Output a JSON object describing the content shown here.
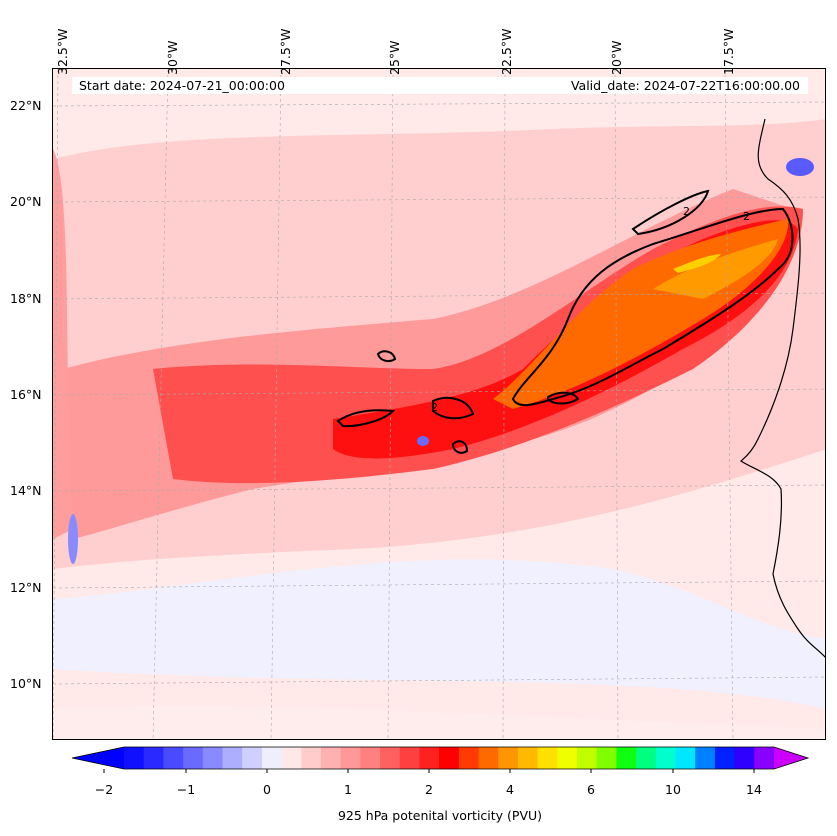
{
  "map": {
    "lon_labels": [
      "32.5°W",
      "30°W",
      "27.5°W",
      "25°W",
      "22.5°W",
      "20°W",
      "17.5°W"
    ],
    "lat_labels": [
      "22°N",
      "20°N",
      "18°N",
      "16°N",
      "14°N",
      "12°N",
      "10°N"
    ],
    "start_date": "Start date: 2024-07-21_00:00:00",
    "valid_date": "Valid_date: 2024-07-22T16:00:00.00",
    "contour_label": "2",
    "coastline_color": "#000000",
    "gridline_style": "dashed-gray"
  },
  "colorbar": {
    "label": "925 hPa potenital vorticity (PVU)",
    "ticks": [
      "−2",
      "−1",
      "0",
      "1",
      "2",
      "4",
      "6",
      "10",
      "14"
    ],
    "colors": [
      "#1010ff",
      "#2a2aff",
      "#4a4aff",
      "#6a6aff",
      "#8a8aff",
      "#aeaeff",
      "#d0d0ff",
      "#eeeeff",
      "#ffe8e8",
      "#ffcccc",
      "#ffb0b0",
      "#ff9898",
      "#ff8080",
      "#ff6060",
      "#ff4040",
      "#ff2020",
      "#ff0000",
      "#ff3a00",
      "#ff6a00",
      "#ff9500",
      "#ffba00",
      "#ffe000",
      "#f0ff00",
      "#c0ff00",
      "#80ff00",
      "#10ff10",
      "#00ff80",
      "#00ffcc",
      "#00e8ff",
      "#0080ff",
      "#0020ff",
      "#3000ff",
      "#8a00ff"
    ],
    "under_color": "#0000ff",
    "over_color": "#cc00ff"
  }
}
